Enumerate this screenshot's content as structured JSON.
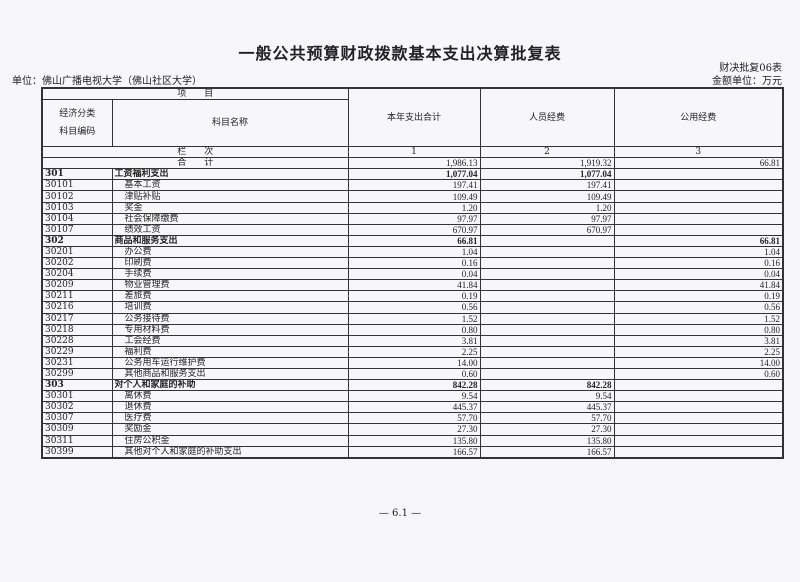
{
  "document": {
    "title": "一般公共预算财政拨款基本支出决算批复表",
    "form_no": "财决批复06表",
    "unit": "单位：佛山广播电视大学（佛山社区大学）",
    "money_unit": "金额单位：万元",
    "page_number": "— 6.1 —"
  },
  "table": {
    "header": {
      "item": "项　　目",
      "econ_class": "经济分类",
      "subject_code": "科目编码",
      "subject_name": "科目名称",
      "col1": "本年支出合计",
      "col2": "人员经费",
      "col3": "公用经费",
      "column_order_label": "栏　　次",
      "n1": "1",
      "n2": "2",
      "n3": "3"
    },
    "total": {
      "label": "合　　计",
      "total": "1,986.13",
      "personnel": "1,919.32",
      "public": "66.81"
    },
    "rows": [
      {
        "code": "301",
        "name": "工资福利支出",
        "total": "1,077.04",
        "personnel": "1,077.04",
        "public": "",
        "level": 1
      },
      {
        "code": "30101",
        "name": "基本工资",
        "total": "197.41",
        "personnel": "197.41",
        "public": "",
        "level": 2
      },
      {
        "code": "30102",
        "name": "津贴补贴",
        "total": "109.49",
        "personnel": "109.49",
        "public": "",
        "level": 2
      },
      {
        "code": "30103",
        "name": "奖金",
        "total": "1.20",
        "personnel": "1.20",
        "public": "",
        "level": 2
      },
      {
        "code": "30104",
        "name": "社会保障缴费",
        "total": "97.97",
        "personnel": "97.97",
        "public": "",
        "level": 2
      },
      {
        "code": "30107",
        "name": "绩效工资",
        "total": "670.97",
        "personnel": "670.97",
        "public": "",
        "level": 2
      },
      {
        "code": "302",
        "name": "商品和服务支出",
        "total": "66.81",
        "personnel": "",
        "public": "66.81",
        "level": 1
      },
      {
        "code": "30201",
        "name": "办公费",
        "total": "1.04",
        "personnel": "",
        "public": "1.04",
        "level": 2
      },
      {
        "code": "30202",
        "name": "印刷费",
        "total": "0.16",
        "personnel": "",
        "public": "0.16",
        "level": 2
      },
      {
        "code": "30204",
        "name": "手续费",
        "total": "0.04",
        "personnel": "",
        "public": "0.04",
        "level": 2
      },
      {
        "code": "30209",
        "name": "物业管理费",
        "total": "41.84",
        "personnel": "",
        "public": "41.84",
        "level": 2
      },
      {
        "code": "30211",
        "name": "差旅费",
        "total": "0.19",
        "personnel": "",
        "public": "0.19",
        "level": 2
      },
      {
        "code": "30216",
        "name": "培训费",
        "total": "0.56",
        "personnel": "",
        "public": "0.56",
        "level": 2
      },
      {
        "code": "30217",
        "name": "公务接待费",
        "total": "1.52",
        "personnel": "",
        "public": "1.52",
        "level": 2
      },
      {
        "code": "30218",
        "name": "专用材料费",
        "total": "0.80",
        "personnel": "",
        "public": "0.80",
        "level": 2
      },
      {
        "code": "30228",
        "name": "工会经费",
        "total": "3.81",
        "personnel": "",
        "public": "3.81",
        "level": 2
      },
      {
        "code": "30229",
        "name": "福利费",
        "total": "2.25",
        "personnel": "",
        "public": "2.25",
        "level": 2
      },
      {
        "code": "30231",
        "name": "公务用车运行维护费",
        "total": "14.00",
        "personnel": "",
        "public": "14.00",
        "level": 2
      },
      {
        "code": "30299",
        "name": "其他商品和服务支出",
        "total": "0.60",
        "personnel": "",
        "public": "0.60",
        "level": 2
      },
      {
        "code": "303",
        "name": "对个人和家庭的补助",
        "total": "842.28",
        "personnel": "842.28",
        "public": "",
        "level": 1
      },
      {
        "code": "30301",
        "name": "离休费",
        "total": "9.54",
        "personnel": "9.54",
        "public": "",
        "level": 2
      },
      {
        "code": "30302",
        "name": "退休费",
        "total": "445.37",
        "personnel": "445.37",
        "public": "",
        "level": 2
      },
      {
        "code": "30307",
        "name": "医疗费",
        "total": "57.70",
        "personnel": "57.70",
        "public": "",
        "level": 2
      },
      {
        "code": "30309",
        "name": "奖励金",
        "total": "27.30",
        "personnel": "27.30",
        "public": "",
        "level": 2
      },
      {
        "code": "30311",
        "name": "住房公积金",
        "total": "135.80",
        "personnel": "135.80",
        "public": "",
        "level": 2
      },
      {
        "code": "30399",
        "name": "其他对个人和家庭的补助支出",
        "total": "166.57",
        "personnel": "166.57",
        "public": "",
        "level": 2
      }
    ]
  }
}
